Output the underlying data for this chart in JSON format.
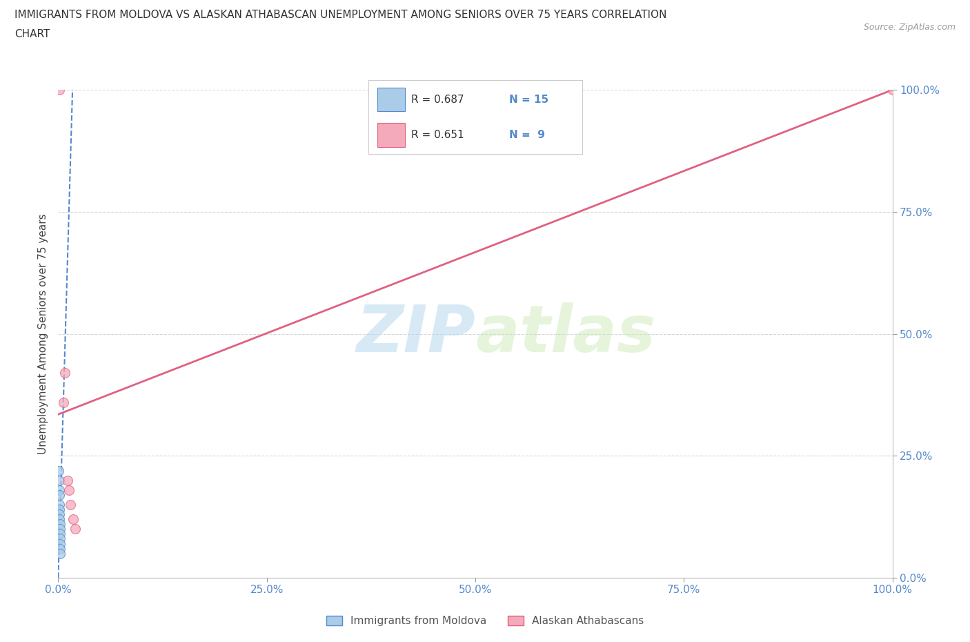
{
  "title_line1": "IMMIGRANTS FROM MOLDOVA VS ALASKAN ATHABASCAN UNEMPLOYMENT AMONG SENIORS OVER 75 YEARS CORRELATION",
  "title_line2": "CHART",
  "source": "Source: ZipAtlas.com",
  "ylabel": "Unemployment Among Seniors over 75 years",
  "watermark_zip": "ZIP",
  "watermark_atlas": "atlas",
  "blue_color": "#aacce8",
  "pink_color": "#f5aabb",
  "blue_line_color": "#5588cc",
  "pink_line_color": "#e06080",
  "blue_scatter": [
    [
      0.0008,
      0.22
    ],
    [
      0.001,
      0.2
    ],
    [
      0.0012,
      0.18
    ],
    [
      0.0013,
      0.17
    ],
    [
      0.0014,
      0.15
    ],
    [
      0.0015,
      0.14
    ],
    [
      0.0016,
      0.13
    ],
    [
      0.0017,
      0.12
    ],
    [
      0.0018,
      0.11
    ],
    [
      0.0019,
      0.1
    ],
    [
      0.002,
      0.09
    ],
    [
      0.0021,
      0.08
    ],
    [
      0.0022,
      0.07
    ],
    [
      0.0023,
      0.06
    ],
    [
      0.0025,
      0.05
    ]
  ],
  "pink_scatter": [
    [
      0.001,
      1.0
    ],
    [
      0.006,
      0.36
    ],
    [
      0.008,
      0.42
    ],
    [
      0.011,
      0.2
    ],
    [
      0.013,
      0.18
    ],
    [
      0.015,
      0.15
    ],
    [
      0.018,
      0.12
    ],
    [
      0.02,
      0.1
    ],
    [
      1.0,
      1.0
    ]
  ],
  "blue_trendline": [
    0.0,
    0.0,
    0.018,
    1.05
  ],
  "pink_trendline": [
    0.0,
    0.335,
    1.0,
    1.0
  ],
  "xlim": [
    0.0,
    1.0
  ],
  "ylim": [
    0.0,
    1.0
  ],
  "xticks": [
    0.0,
    0.25,
    0.5,
    0.75,
    1.0
  ],
  "yticks": [
    0.0,
    0.25,
    0.5,
    0.75,
    1.0
  ],
  "xticklabels": [
    "0.0%",
    "25.0%",
    "50.0%",
    "75.0%",
    "100.0%"
  ],
  "yticklabels": [
    "0.0%",
    "25.0%",
    "50.0%",
    "75.0%",
    "100.0%"
  ],
  "tick_color": "#5588cc",
  "grid_color": "#cccccc",
  "background_color": "#ffffff",
  "legend_label_blue": "Immigrants from Moldova",
  "legend_label_pink": "Alaskan Athabascans",
  "legend_r_blue": "0.687",
  "legend_n_blue": "15",
  "legend_r_pink": "0.651",
  "legend_n_pink": "9"
}
